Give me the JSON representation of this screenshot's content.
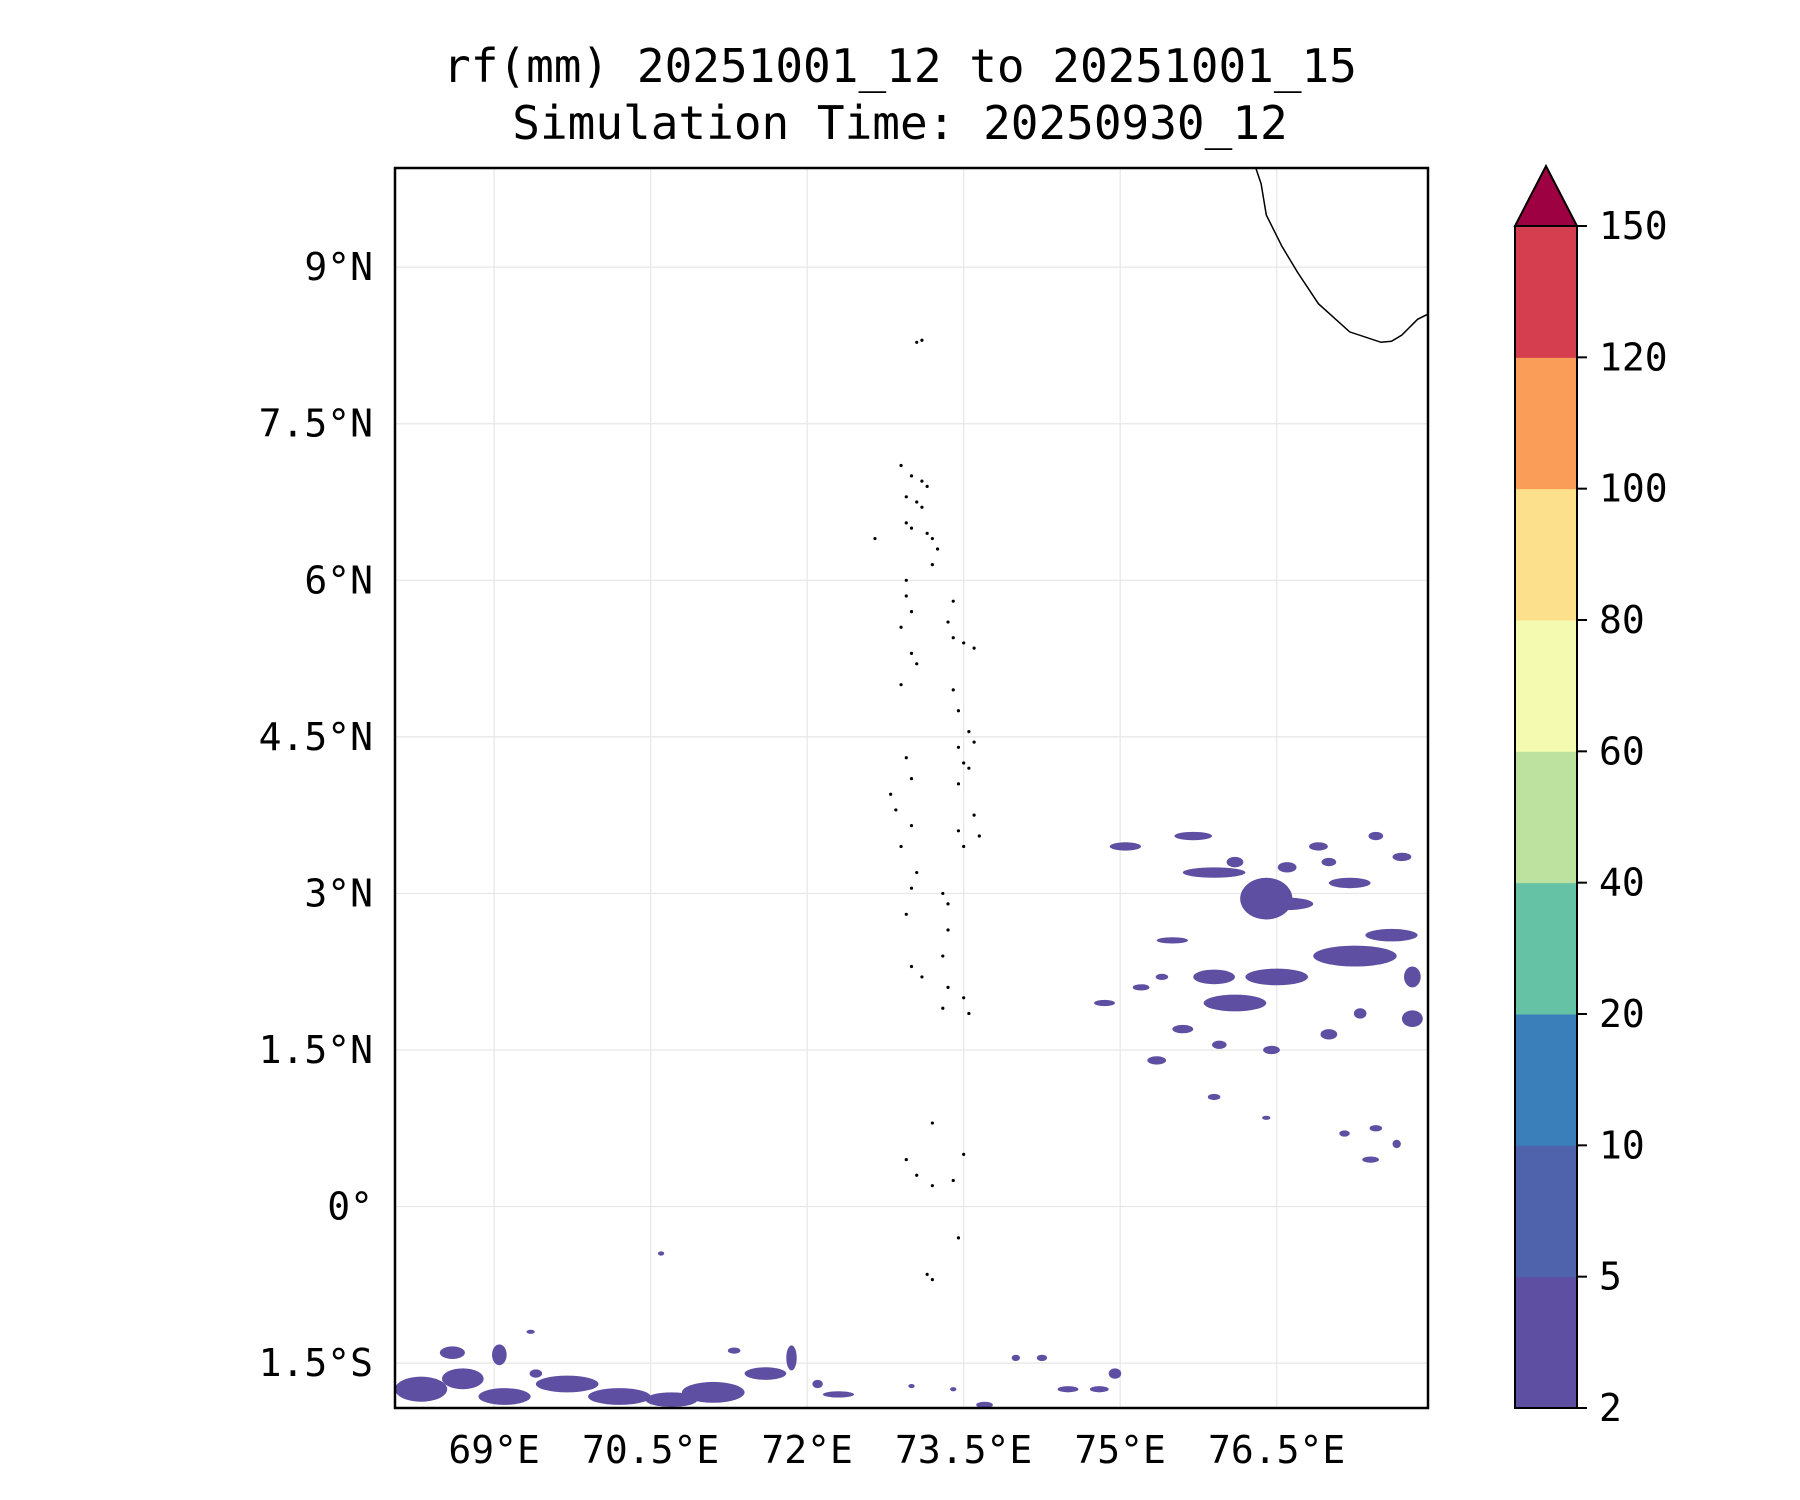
{
  "chart_data": {
    "type": "heatmap",
    "title": "rf(mm) 20251001_12 to 20251001_15",
    "subtitle": "Simulation Time: 20250930_12",
    "variable": "rf",
    "units": "mm",
    "xlim": [
      68.05,
      77.95
    ],
    "ylim": [
      -1.93,
      9.95
    ],
    "x_ticks": [
      {
        "value": 69.0,
        "label": "69°E"
      },
      {
        "value": 70.5,
        "label": "70.5°E"
      },
      {
        "value": 72.0,
        "label": "72°E"
      },
      {
        "value": 73.5,
        "label": "73.5°E"
      },
      {
        "value": 75.0,
        "label": "75°E"
      },
      {
        "value": 76.5,
        "label": "76.5°E"
      }
    ],
    "y_ticks": [
      {
        "value": 9.0,
        "label": "9°N"
      },
      {
        "value": 7.5,
        "label": "7.5°N"
      },
      {
        "value": 6.0,
        "label": "6°N"
      },
      {
        "value": 4.5,
        "label": "4.5°N"
      },
      {
        "value": 3.0,
        "label": "3°N"
      },
      {
        "value": 1.5,
        "label": "1.5°N"
      },
      {
        "value": 0.0,
        "label": "0°"
      },
      {
        "value": -1.5,
        "label": "1.5°S"
      }
    ],
    "grid": true,
    "colorbar": {
      "levels": [
        "2",
        "5",
        "10",
        "20",
        "40",
        "60",
        "80",
        "100",
        "120",
        "150"
      ],
      "colors": [
        "#5e4fa2",
        "#4e63ac",
        "#3a7fb9",
        "#66c2a5",
        "#bde2a0",
        "#f4fab0",
        "#fce08b",
        "#f99d59",
        "#d53e4f"
      ],
      "extend_color": "#9e0142",
      "extend": "max"
    },
    "rain_patches": [
      {
        "lon": 75.7,
        "lat": 3.55,
        "rx": 0.18,
        "ry": 0.04,
        "value": 3
      },
      {
        "lon": 75.05,
        "lat": 3.45,
        "rx": 0.15,
        "ry": 0.04,
        "value": 3
      },
      {
        "lon": 75.9,
        "lat": 3.2,
        "rx": 0.3,
        "ry": 0.05,
        "value": 3
      },
      {
        "lon": 76.4,
        "lat": 2.95,
        "rx": 0.25,
        "ry": 0.2,
        "value": 3
      },
      {
        "lon": 76.6,
        "lat": 2.9,
        "rx": 0.25,
        "ry": 0.06,
        "value": 3
      },
      {
        "lon": 77.2,
        "lat": 3.1,
        "rx": 0.2,
        "ry": 0.05,
        "value": 3
      },
      {
        "lon": 77.0,
        "lat": 3.3,
        "rx": 0.07,
        "ry": 0.04,
        "value": 3
      },
      {
        "lon": 76.1,
        "lat": 3.3,
        "rx": 0.08,
        "ry": 0.05,
        "value": 3
      },
      {
        "lon": 76.6,
        "lat": 3.25,
        "rx": 0.09,
        "ry": 0.05,
        "value": 3
      },
      {
        "lon": 77.45,
        "lat": 3.55,
        "rx": 0.07,
        "ry": 0.04,
        "value": 3
      },
      {
        "lon": 77.7,
        "lat": 3.35,
        "rx": 0.09,
        "ry": 0.04,
        "value": 3
      },
      {
        "lon": 76.9,
        "lat": 3.45,
        "rx": 0.09,
        "ry": 0.04,
        "value": 3
      },
      {
        "lon": 75.5,
        "lat": 2.55,
        "rx": 0.15,
        "ry": 0.03,
        "value": 3
      },
      {
        "lon": 77.25,
        "lat": 2.4,
        "rx": 0.4,
        "ry": 0.1,
        "value": 4
      },
      {
        "lon": 77.6,
        "lat": 2.6,
        "rx": 0.25,
        "ry": 0.06,
        "value": 3
      },
      {
        "lon": 76.5,
        "lat": 2.2,
        "rx": 0.3,
        "ry": 0.08,
        "value": 3
      },
      {
        "lon": 76.1,
        "lat": 1.95,
        "rx": 0.3,
        "ry": 0.08,
        "value": 3
      },
      {
        "lon": 75.9,
        "lat": 2.2,
        "rx": 0.2,
        "ry": 0.07,
        "value": 3
      },
      {
        "lon": 77.8,
        "lat": 2.2,
        "rx": 0.08,
        "ry": 0.1,
        "value": 3
      },
      {
        "lon": 77.8,
        "lat": 1.8,
        "rx": 0.1,
        "ry": 0.08,
        "value": 3
      },
      {
        "lon": 75.6,
        "lat": 1.7,
        "rx": 0.1,
        "ry": 0.04,
        "value": 3
      },
      {
        "lon": 75.95,
        "lat": 1.55,
        "rx": 0.07,
        "ry": 0.04,
        "value": 3
      },
      {
        "lon": 77.0,
        "lat": 1.65,
        "rx": 0.08,
        "ry": 0.05,
        "value": 3
      },
      {
        "lon": 77.3,
        "lat": 1.85,
        "rx": 0.06,
        "ry": 0.05,
        "value": 3
      },
      {
        "lon": 76.45,
        "lat": 1.5,
        "rx": 0.08,
        "ry": 0.04,
        "value": 3
      },
      {
        "lon": 74.85,
        "lat": 1.95,
        "rx": 0.1,
        "ry": 0.03,
        "value": 3
      },
      {
        "lon": 75.2,
        "lat": 2.1,
        "rx": 0.08,
        "ry": 0.03,
        "value": 3
      },
      {
        "lon": 75.4,
        "lat": 2.2,
        "rx": 0.06,
        "ry": 0.03,
        "value": 3
      },
      {
        "lon": 75.35,
        "lat": 1.4,
        "rx": 0.09,
        "ry": 0.04,
        "value": 3
      },
      {
        "lon": 75.9,
        "lat": 1.05,
        "rx": 0.06,
        "ry": 0.03,
        "value": 3
      },
      {
        "lon": 77.4,
        "lat": 0.45,
        "rx": 0.08,
        "ry": 0.03,
        "value": 3
      },
      {
        "lon": 77.15,
        "lat": 0.7,
        "rx": 0.05,
        "ry": 0.03,
        "value": 3
      },
      {
        "lon": 77.45,
        "lat": 0.75,
        "rx": 0.06,
        "ry": 0.03,
        "value": 3
      },
      {
        "lon": 77.65,
        "lat": 0.6,
        "rx": 0.04,
        "ry": 0.04,
        "value": 3
      },
      {
        "lon": 76.4,
        "lat": 0.85,
        "rx": 0.04,
        "ry": 0.02,
        "value": 3
      },
      {
        "lon": 68.3,
        "lat": -1.75,
        "rx": 0.25,
        "ry": 0.12,
        "value": 3
      },
      {
        "lon": 68.7,
        "lat": -1.65,
        "rx": 0.2,
        "ry": 0.1,
        "value": 4
      },
      {
        "lon": 69.1,
        "lat": -1.82,
        "rx": 0.25,
        "ry": 0.08,
        "value": 3
      },
      {
        "lon": 69.7,
        "lat": -1.7,
        "rx": 0.3,
        "ry": 0.08,
        "value": 3
      },
      {
        "lon": 70.2,
        "lat": -1.82,
        "rx": 0.3,
        "ry": 0.08,
        "value": 3
      },
      {
        "lon": 70.7,
        "lat": -1.85,
        "rx": 0.25,
        "ry": 0.07,
        "value": 3
      },
      {
        "lon": 71.1,
        "lat": -1.78,
        "rx": 0.3,
        "ry": 0.1,
        "value": 4
      },
      {
        "lon": 71.6,
        "lat": -1.6,
        "rx": 0.2,
        "ry": 0.06,
        "value": 3
      },
      {
        "lon": 68.6,
        "lat": -1.4,
        "rx": 0.12,
        "ry": 0.06,
        "value": 3
      },
      {
        "lon": 69.05,
        "lat": -1.42,
        "rx": 0.07,
        "ry": 0.1,
        "value": 3
      },
      {
        "lon": 69.4,
        "lat": -1.6,
        "rx": 0.06,
        "ry": 0.04,
        "value": 3
      },
      {
        "lon": 71.85,
        "lat": -1.45,
        "rx": 0.05,
        "ry": 0.12,
        "value": 3
      },
      {
        "lon": 72.3,
        "lat": -1.8,
        "rx": 0.15,
        "ry": 0.03,
        "value": 3
      },
      {
        "lon": 71.3,
        "lat": -1.38,
        "rx": 0.06,
        "ry": 0.03,
        "value": 3
      },
      {
        "lon": 72.1,
        "lat": -1.7,
        "rx": 0.05,
        "ry": 0.04,
        "value": 3
      },
      {
        "lon": 74.0,
        "lat": -1.45,
        "rx": 0.04,
        "ry": 0.03,
        "value": 3
      },
      {
        "lon": 74.25,
        "lat": -1.45,
        "rx": 0.05,
        "ry": 0.03,
        "value": 3
      },
      {
        "lon": 74.5,
        "lat": -1.75,
        "rx": 0.1,
        "ry": 0.03,
        "value": 3
      },
      {
        "lon": 74.95,
        "lat": -1.6,
        "rx": 0.06,
        "ry": 0.05,
        "value": 3
      },
      {
        "lon": 74.8,
        "lat": -1.75,
        "rx": 0.09,
        "ry": 0.03,
        "value": 3
      },
      {
        "lon": 73.7,
        "lat": -1.9,
        "rx": 0.08,
        "ry": 0.03,
        "value": 3
      },
      {
        "lon": 70.6,
        "lat": -0.45,
        "rx": 0.03,
        "ry": 0.02,
        "value": 3
      },
      {
        "lon": 69.35,
        "lat": -1.2,
        "rx": 0.04,
        "ry": 0.02,
        "value": 3
      },
      {
        "lon": 73.4,
        "lat": -1.75,
        "rx": 0.03,
        "ry": 0.02,
        "value": 3
      },
      {
        "lon": 73.0,
        "lat": -1.72,
        "rx": 0.03,
        "ry": 0.02,
        "value": 3
      }
    ],
    "coastline_kerala": [
      [
        76.3,
        9.95
      ],
      [
        76.35,
        9.8
      ],
      [
        76.4,
        9.5
      ],
      [
        76.55,
        9.2
      ],
      [
        76.7,
        8.95
      ],
      [
        76.9,
        8.65
      ],
      [
        77.2,
        8.38
      ],
      [
        77.5,
        8.28
      ],
      [
        77.6,
        8.29
      ],
      [
        77.7,
        8.35
      ],
      [
        77.85,
        8.5
      ],
      [
        77.95,
        8.55
      ]
    ],
    "islands": [
      [
        73.05,
        8.28
      ],
      [
        73.1,
        8.3
      ],
      [
        72.9,
        7.1
      ],
      [
        73.0,
        7.0
      ],
      [
        73.1,
        6.95
      ],
      [
        73.15,
        6.9
      ],
      [
        72.95,
        6.8
      ],
      [
        73.05,
        6.75
      ],
      [
        73.1,
        6.7
      ],
      [
        72.95,
        6.55
      ],
      [
        73.0,
        6.5
      ],
      [
        73.15,
        6.45
      ],
      [
        73.2,
        6.4
      ],
      [
        73.25,
        6.3
      ],
      [
        73.2,
        6.15
      ],
      [
        72.95,
        6.0
      ],
      [
        72.95,
        5.85
      ],
      [
        73.0,
        5.7
      ],
      [
        72.9,
        5.55
      ],
      [
        73.4,
        5.8
      ],
      [
        73.35,
        5.6
      ],
      [
        73.4,
        5.45
      ],
      [
        73.5,
        5.4
      ],
      [
        73.6,
        5.35
      ],
      [
        73.0,
        5.3
      ],
      [
        73.05,
        5.2
      ],
      [
        72.9,
        5.0
      ],
      [
        73.4,
        4.95
      ],
      [
        73.45,
        4.75
      ],
      [
        73.55,
        4.55
      ],
      [
        73.6,
        4.45
      ],
      [
        73.45,
        4.4
      ],
      [
        73.5,
        4.25
      ],
      [
        73.55,
        4.2
      ],
      [
        73.45,
        4.05
      ],
      [
        72.95,
        4.3
      ],
      [
        73.0,
        4.1
      ],
      [
        72.8,
        3.95
      ],
      [
        72.85,
        3.8
      ],
      [
        73.0,
        3.65
      ],
      [
        72.9,
        3.45
      ],
      [
        73.45,
        3.6
      ],
      [
        73.5,
        3.45
      ],
      [
        73.65,
        3.55
      ],
      [
        73.05,
        3.2
      ],
      [
        73.0,
        3.05
      ],
      [
        73.3,
        3.0
      ],
      [
        73.35,
        2.9
      ],
      [
        72.95,
        2.8
      ],
      [
        73.35,
        2.65
      ],
      [
        73.3,
        2.4
      ],
      [
        73.0,
        2.3
      ],
      [
        73.1,
        2.2
      ],
      [
        73.35,
        2.1
      ],
      [
        73.5,
        2.0
      ],
      [
        73.55,
        1.85
      ],
      [
        73.3,
        1.9
      ],
      [
        73.2,
        0.8
      ],
      [
        73.5,
        0.5
      ],
      [
        72.95,
        0.45
      ],
      [
        73.05,
        0.3
      ],
      [
        73.2,
        0.2
      ],
      [
        73.4,
        0.25
      ],
      [
        73.45,
        -0.3
      ],
      [
        73.15,
        -0.65
      ],
      [
        73.2,
        -0.7
      ],
      [
        72.65,
        6.4
      ],
      [
        73.6,
        3.75
      ]
    ]
  }
}
